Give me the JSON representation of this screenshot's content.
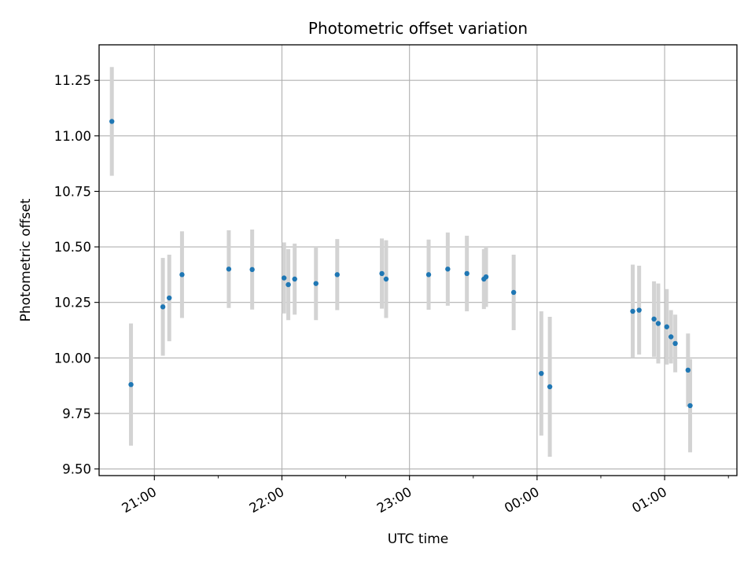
{
  "chart_data": {
    "type": "scatter",
    "title": "Photometric offset variation",
    "xlabel": "UTC time",
    "ylabel": "Photometric offset",
    "x_ticks": [
      "21:00",
      "22:00",
      "23:00",
      "00:00",
      "01:00"
    ],
    "x_tick_hours": [
      21,
      22,
      23,
      24,
      25
    ],
    "y_ticks": [
      "9.50",
      "9.75",
      "10.00",
      "10.25",
      "10.50",
      "10.75",
      "11.00",
      "11.25"
    ],
    "y_tick_values": [
      9.5,
      9.75,
      10.0,
      10.25,
      10.5,
      10.75,
      11.0,
      11.25
    ],
    "xlim": [
      "20:34",
      "25:34"
    ],
    "ylim": [
      9.47,
      11.41
    ],
    "grid": true,
    "marker_color": "#1f77b4",
    "errorbar_color": "#d3d3d3",
    "series": [
      {
        "points": [
          {
            "t": "20:40",
            "y": 11.065,
            "err": 0.245
          },
          {
            "t": "20:49",
            "y": 9.88,
            "err": 0.275
          },
          {
            "t": "21:04",
            "y": 10.23,
            "err": 0.22
          },
          {
            "t": "21:07",
            "y": 10.27,
            "err": 0.195
          },
          {
            "t": "21:13",
            "y": 10.375,
            "err": 0.195
          },
          {
            "t": "21:35",
            "y": 10.4,
            "err": 0.175
          },
          {
            "t": "21:46",
            "y": 10.398,
            "err": 0.18
          },
          {
            "t": "22:01",
            "y": 10.36,
            "err": 0.16
          },
          {
            "t": "22:03",
            "y": 10.33,
            "err": 0.16
          },
          {
            "t": "22:06",
            "y": 10.355,
            "err": 0.16
          },
          {
            "t": "22:16",
            "y": 10.335,
            "err": 0.165
          },
          {
            "t": "22:26",
            "y": 10.375,
            "err": 0.16
          },
          {
            "t": "22:47",
            "y": 10.38,
            "err": 0.158
          },
          {
            "t": "22:49",
            "y": 10.355,
            "err": 0.175
          },
          {
            "t": "23:09",
            "y": 10.375,
            "err": 0.158
          },
          {
            "t": "23:18",
            "y": 10.4,
            "err": 0.165
          },
          {
            "t": "23:27",
            "y": 10.38,
            "err": 0.17
          },
          {
            "t": "23:35",
            "y": 10.355,
            "err": 0.135
          },
          {
            "t": "23:36",
            "y": 10.365,
            "err": 0.135
          },
          {
            "t": "23:49",
            "y": 10.295,
            "err": 0.17
          },
          {
            "t": "24:02",
            "y": 9.93,
            "err": 0.28
          },
          {
            "t": "24:06",
            "y": 9.87,
            "err": 0.315
          },
          {
            "t": "24:45",
            "y": 10.21,
            "err": 0.21
          },
          {
            "t": "24:48",
            "y": 10.215,
            "err": 0.2
          },
          {
            "t": "24:55",
            "y": 10.175,
            "err": 0.17
          },
          {
            "t": "24:57",
            "y": 10.155,
            "err": 0.18
          },
          {
            "t": "25:01",
            "y": 10.14,
            "err": 0.17
          },
          {
            "t": "25:03",
            "y": 10.095,
            "err": 0.12
          },
          {
            "t": "25:05",
            "y": 10.065,
            "err": 0.13
          },
          {
            "t": "25:11",
            "y": 9.945,
            "err": 0.165
          },
          {
            "t": "25:12",
            "y": 9.785,
            "err": 0.21
          }
        ]
      }
    ]
  }
}
